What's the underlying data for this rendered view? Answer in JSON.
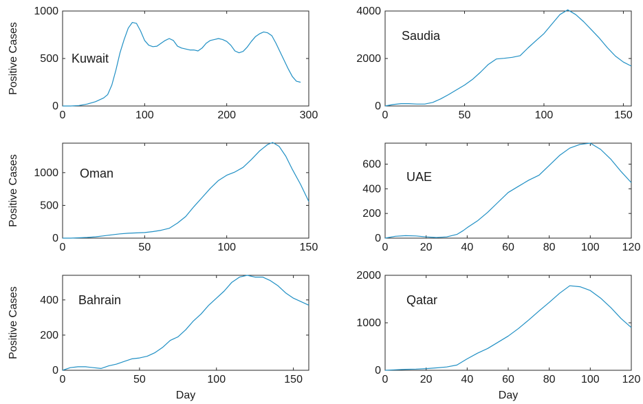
{
  "figure": {
    "xlabel": "Day",
    "ylabel": "Positive Cases"
  },
  "chart_data": [
    {
      "type": "line",
      "annotation": "Kuwait",
      "ylabel": "Positive Cases",
      "xlabel": "",
      "xlim": [
        0,
        300
      ],
      "ylim": [
        0,
        1000
      ],
      "xticks": [
        0,
        100,
        200,
        300
      ],
      "yticks": [
        0,
        500,
        1000
      ],
      "color": "#1f8fc4",
      "series": [
        {
          "x": [
            0,
            10,
            20,
            30,
            40,
            50,
            55,
            60,
            65,
            70,
            75,
            80,
            85,
            90,
            95,
            100,
            105,
            110,
            115,
            120,
            125,
            130,
            135,
            140,
            145,
            150,
            155,
            160,
            165,
            170,
            175,
            180,
            185,
            190,
            195,
            200,
            205,
            210,
            215,
            220,
            225,
            230,
            235,
            240,
            245,
            250,
            255,
            260,
            265,
            270,
            275,
            280,
            285,
            290
          ],
          "y": [
            0,
            0,
            5,
            20,
            45,
            85,
            120,
            220,
            380,
            560,
            700,
            820,
            880,
            870,
            790,
            690,
            640,
            625,
            630,
            660,
            690,
            710,
            690,
            630,
            610,
            600,
            590,
            590,
            580,
            610,
            660,
            690,
            700,
            710,
            700,
            680,
            640,
            580,
            560,
            575,
            620,
            680,
            730,
            760,
            780,
            770,
            740,
            660,
            570,
            480,
            390,
            310,
            260,
            250
          ]
        }
      ]
    },
    {
      "type": "line",
      "annotation": "Saudia",
      "ylabel": "",
      "xlabel": "",
      "xlim": [
        0,
        155
      ],
      "ylim": [
        0,
        4000
      ],
      "xticks": [
        0,
        50,
        100,
        150
      ],
      "yticks": [
        0,
        2000,
        4000
      ],
      "color": "#1f8fc4",
      "series": [
        {
          "x": [
            0,
            5,
            10,
            15,
            20,
            25,
            30,
            35,
            40,
            45,
            50,
            55,
            60,
            65,
            70,
            75,
            80,
            85,
            90,
            95,
            100,
            105,
            110,
            115,
            120,
            125,
            130,
            135,
            140,
            145,
            150,
            155
          ],
          "y": [
            0,
            60,
            100,
            100,
            80,
            80,
            150,
            300,
            480,
            680,
            880,
            1120,
            1420,
            1750,
            1980,
            2010,
            2050,
            2120,
            2450,
            2750,
            3050,
            3450,
            3850,
            4050,
            3850,
            3550,
            3200,
            2850,
            2450,
            2100,
            1850,
            1680
          ]
        }
      ]
    },
    {
      "type": "line",
      "annotation": "Oman",
      "ylabel": "Positive Cases",
      "xlabel": "",
      "xlim": [
        0,
        150
      ],
      "ylim": [
        0,
        1450
      ],
      "xticks": [
        0,
        50,
        100,
        150
      ],
      "yticks": [
        0,
        500,
        1000
      ],
      "color": "#1f8fc4",
      "series": [
        {
          "x": [
            0,
            5,
            10,
            15,
            20,
            25,
            30,
            35,
            40,
            45,
            50,
            55,
            60,
            65,
            70,
            75,
            80,
            85,
            90,
            95,
            100,
            105,
            110,
            115,
            120,
            125,
            128,
            132,
            136,
            140,
            145,
            150
          ],
          "y": [
            0,
            0,
            5,
            10,
            20,
            35,
            50,
            65,
            75,
            80,
            85,
            100,
            120,
            150,
            230,
            330,
            480,
            620,
            760,
            880,
            960,
            1010,
            1080,
            1200,
            1330,
            1430,
            1460,
            1400,
            1250,
            1050,
            820,
            560
          ]
        }
      ]
    },
    {
      "type": "line",
      "annotation": "UAE",
      "ylabel": "",
      "xlabel": "",
      "xlim": [
        0,
        120
      ],
      "ylim": [
        0,
        770
      ],
      "xticks": [
        0,
        20,
        40,
        60,
        80,
        100,
        120
      ],
      "yticks": [
        0,
        200,
        400,
        600
      ],
      "color": "#1f8fc4",
      "series": [
        {
          "x": [
            0,
            5,
            10,
            15,
            20,
            25,
            30,
            35,
            38,
            40,
            45,
            50,
            55,
            60,
            65,
            70,
            75,
            80,
            85,
            90,
            95,
            100,
            105,
            110,
            115,
            120
          ],
          "y": [
            0,
            15,
            20,
            18,
            10,
            5,
            10,
            30,
            60,
            85,
            140,
            210,
            290,
            370,
            420,
            470,
            510,
            590,
            670,
            730,
            760,
            770,
            720,
            640,
            540,
            450
          ]
        }
      ]
    },
    {
      "type": "line",
      "annotation": "Bahrain",
      "ylabel": "Positive Cases",
      "xlabel": "Day",
      "xlim": [
        0,
        160
      ],
      "ylim": [
        0,
        540
      ],
      "xticks": [
        0,
        50,
        100,
        150
      ],
      "yticks": [
        0,
        200,
        400
      ],
      "color": "#1f8fc4",
      "series": [
        {
          "x": [
            0,
            5,
            10,
            15,
            20,
            25,
            30,
            35,
            40,
            45,
            50,
            55,
            60,
            65,
            70,
            75,
            80,
            85,
            90,
            95,
            100,
            105,
            110,
            115,
            120,
            125,
            130,
            135,
            140,
            145,
            150,
            155,
            160
          ],
          "y": [
            0,
            15,
            20,
            20,
            15,
            10,
            25,
            35,
            50,
            65,
            70,
            80,
            100,
            130,
            170,
            190,
            230,
            280,
            320,
            370,
            410,
            450,
            500,
            530,
            540,
            530,
            530,
            510,
            480,
            440,
            410,
            390,
            370
          ]
        }
      ]
    },
    {
      "type": "line",
      "annotation": "Qatar",
      "ylabel": "",
      "xlabel": "Day",
      "xlim": [
        0,
        120
      ],
      "ylim": [
        0,
        2000
      ],
      "xticks": [
        0,
        20,
        40,
        60,
        80,
        100,
        120
      ],
      "yticks": [
        0,
        1000,
        2000
      ],
      "color": "#1f8fc4",
      "series": [
        {
          "x": [
            0,
            5,
            10,
            15,
            20,
            25,
            30,
            35,
            40,
            45,
            50,
            55,
            60,
            65,
            70,
            75,
            80,
            85,
            90,
            95,
            100,
            105,
            110,
            115,
            120
          ],
          "y": [
            0,
            10,
            20,
            25,
            35,
            50,
            70,
            110,
            240,
            360,
            460,
            590,
            720,
            880,
            1060,
            1250,
            1430,
            1620,
            1780,
            1760,
            1680,
            1520,
            1320,
            1090,
            900
          ]
        }
      ]
    }
  ]
}
